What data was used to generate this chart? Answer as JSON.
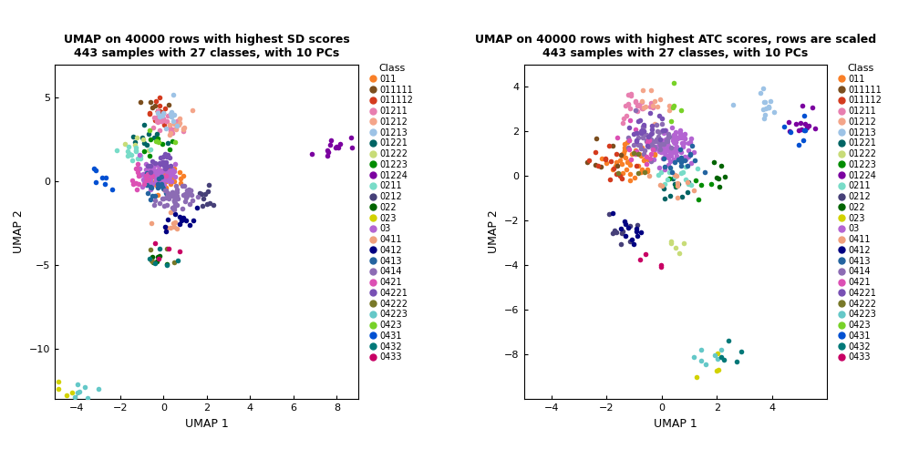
{
  "title1": "UMAP on 40000 rows with highest SD scores\n443 samples with 27 classes, with 10 PCs",
  "title2": "UMAP on 40000 rows with highest ATC scores, rows are scaled\n443 samples with 27 classes, with 10 PCs",
  "xlabel": "UMAP 1",
  "ylabel": "UMAP 2",
  "legend_title": "Class",
  "classes": [
    "011",
    "011111",
    "011112",
    "01211",
    "01212",
    "01213",
    "01221",
    "01222",
    "01223",
    "01224",
    "0211",
    "0212",
    "022",
    "023",
    "03",
    "0411",
    "0412",
    "0413",
    "0414",
    "0421",
    "04221",
    "04222",
    "04223",
    "0423",
    "0431",
    "0432",
    "0433"
  ],
  "colors": [
    "#F97F27",
    "#7B4E1E",
    "#D43B1E",
    "#E87FB0",
    "#F4A58A",
    "#9DC3E6",
    "#006464",
    "#C8DC78",
    "#008C00",
    "#7B00A0",
    "#78DCC8",
    "#464078",
    "#006400",
    "#D2D200",
    "#B464D2",
    "#F0A07D",
    "#000082",
    "#2464A0",
    "#8C6CB4",
    "#DC50B4",
    "#7850B4",
    "#787828",
    "#64C8C8",
    "#78D228",
    "#0050D2",
    "#007878",
    "#C80064"
  ],
  "plot1_xlim": [
    -5,
    9
  ],
  "plot1_ylim": [
    -13,
    7
  ],
  "plot1_xticks": [
    -4,
    -2,
    0,
    2,
    4,
    6,
    8
  ],
  "plot1_yticks": [
    -10,
    -5,
    0,
    5
  ],
  "plot2_xlim": [
    -5,
    6
  ],
  "plot2_ylim": [
    -10,
    5
  ],
  "plot2_xticks": [
    -4,
    -2,
    0,
    2,
    4
  ],
  "plot2_yticks": [
    -8,
    -6,
    -4,
    -2,
    0,
    2,
    4
  ],
  "background_color": "#FFFFFF",
  "panel_bg": "#FFFFFF",
  "point_size": 16,
  "n_samples": 443
}
